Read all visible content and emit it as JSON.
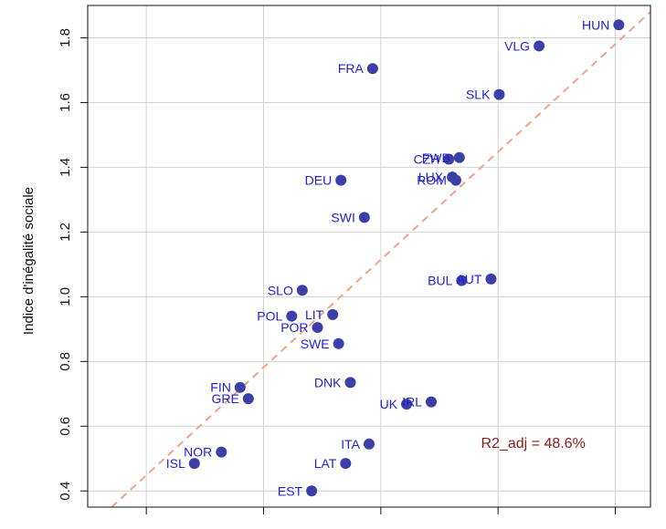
{
  "chart_data": {
    "type": "scatter",
    "title": "",
    "xlabel": "",
    "ylabel": "Indice d'inégalité sociale",
    "xlim": [
      0.0,
      4.8
    ],
    "ylim": [
      0.35,
      1.9
    ],
    "x_ticks": [
      0.5,
      1.5,
      2.5,
      3.5,
      4.5
    ],
    "y_ticks": [
      0.4,
      0.6,
      0.8,
      1.0,
      1.2,
      1.4,
      1.6,
      1.8
    ],
    "y_tick_labels": [
      "0.4",
      "0.6",
      "0.8",
      "1.0",
      "1.2",
      "1.4",
      "1.6",
      "1.8"
    ],
    "grid": true,
    "annotation": "R2_adj = 48.6%",
    "fit_line": {
      "intercept": 0.282,
      "slope": 0.333,
      "style": "dashed",
      "color": "#f4a08a"
    },
    "colors": {
      "points": "#3b3fa8",
      "labels": "#1f1fd6",
      "annotation": "#8b1a1a",
      "grid": "#d3d3d3"
    },
    "points": [
      {
        "label": "HUN",
        "x": 4.53,
        "y": 1.84
      },
      {
        "label": "VLG",
        "x": 3.85,
        "y": 1.775
      },
      {
        "label": "FRA",
        "x": 2.43,
        "y": 1.705
      },
      {
        "label": "SLK",
        "x": 3.51,
        "y": 1.625
      },
      {
        "label": "FWB",
        "x": 3.17,
        "y": 1.43
      },
      {
        "label": "CZH",
        "x": 3.08,
        "y": 1.425
      },
      {
        "label": "LUX",
        "x": 3.11,
        "y": 1.37
      },
      {
        "label": "ROM",
        "x": 3.14,
        "y": 1.36
      },
      {
        "label": "DEU",
        "x": 2.16,
        "y": 1.36
      },
      {
        "label": "SWI",
        "x": 2.36,
        "y": 1.245
      },
      {
        "label": "AUT",
        "x": 3.44,
        "y": 1.055
      },
      {
        "label": "BUL",
        "x": 3.19,
        "y": 1.05
      },
      {
        "label": "SLO",
        "x": 1.83,
        "y": 1.02
      },
      {
        "label": "LIT",
        "x": 2.09,
        "y": 0.945
      },
      {
        "label": "POL",
        "x": 1.74,
        "y": 0.94
      },
      {
        "label": "POR",
        "x": 1.96,
        "y": 0.905
      },
      {
        "label": "SWE",
        "x": 2.14,
        "y": 0.855
      },
      {
        "label": "DNK",
        "x": 2.24,
        "y": 0.735
      },
      {
        "label": "FIN",
        "x": 1.3,
        "y": 0.72
      },
      {
        "label": "GRE",
        "x": 1.37,
        "y": 0.685
      },
      {
        "label": "IRL",
        "x": 2.93,
        "y": 0.675
      },
      {
        "label": "UK",
        "x": 2.72,
        "y": 0.668
      },
      {
        "label": "ITA",
        "x": 2.4,
        "y": 0.545
      },
      {
        "label": "NOR",
        "x": 1.14,
        "y": 0.52
      },
      {
        "label": "ISL",
        "x": 0.91,
        "y": 0.485
      },
      {
        "label": "LAT",
        "x": 2.2,
        "y": 0.485
      },
      {
        "label": "EST",
        "x": 1.91,
        "y": 0.4
      }
    ]
  }
}
